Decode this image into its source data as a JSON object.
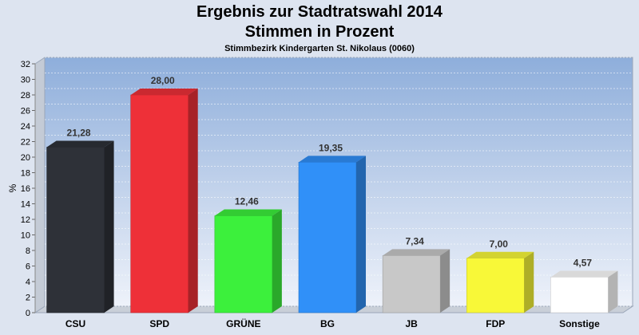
{
  "chart_data": {
    "type": "bar",
    "title": "Ergebnis zur Stadtratswahl 2014",
    "subtitle": "Stimmen in Prozent",
    "caption": "Stimmbezirk Kindergarten St. Nikolaus (0060)",
    "ylabel": "%",
    "xlabel": "",
    "ylim": [
      0,
      32
    ],
    "yticks": [
      0,
      2,
      4,
      6,
      8,
      10,
      12,
      14,
      16,
      18,
      20,
      22,
      24,
      26,
      28,
      30,
      32
    ],
    "grid": true,
    "categories": [
      "CSU",
      "SPD",
      "GRÜNE",
      "BG",
      "JB",
      "FDP",
      "Sonstige"
    ],
    "values": [
      21.28,
      28.0,
      12.46,
      19.35,
      7.34,
      7.0,
      4.57
    ],
    "value_labels": [
      "21,28",
      "28,00",
      "12,46",
      "19,35",
      "7,34",
      "7,00",
      "4,57"
    ],
    "colors": [
      "#2e3138",
      "#ee3038",
      "#3cf03c",
      "#3090f8",
      "#c8c8c8",
      "#f8f838",
      "#ffffff"
    ]
  }
}
